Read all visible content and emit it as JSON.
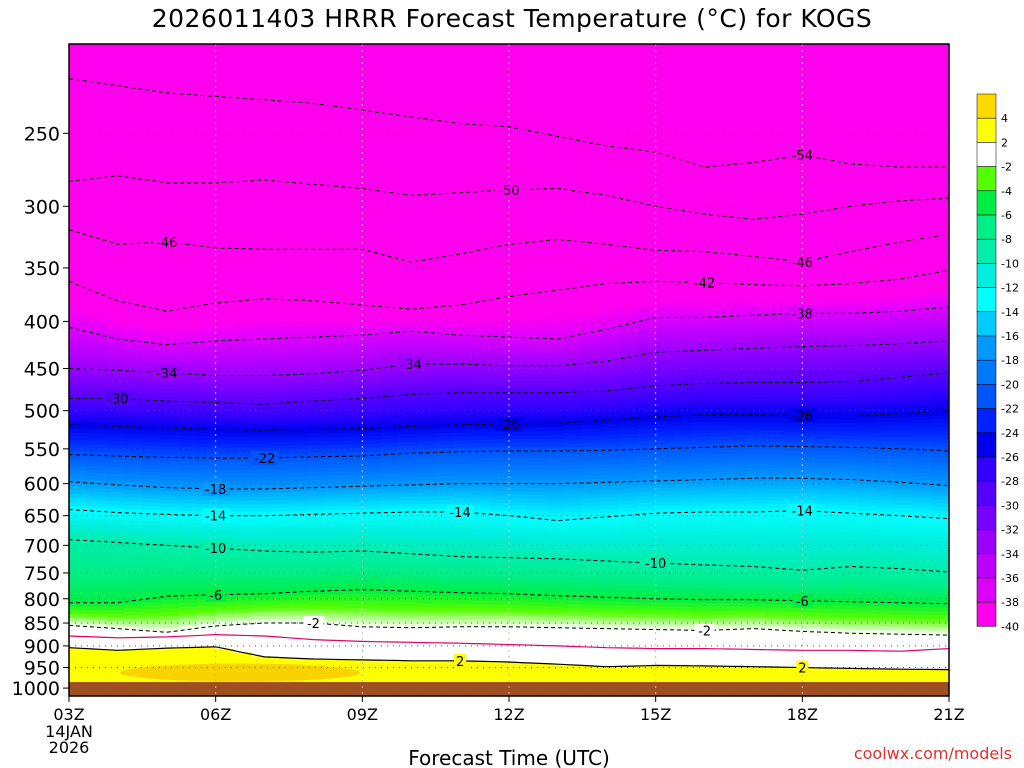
{
  "chart_data": {
    "type": "contour",
    "title": "2026011403 HRRR Forecast Temperature (°C) for KOGS",
    "xlabel": "Forecast Time (UTC)",
    "ylabel": "",
    "x_ticks": [
      {
        "hour": 0,
        "label": "03Z",
        "sub": [
          "14JAN",
          "2026"
        ]
      },
      {
        "hour": 3,
        "label": "06Z"
      },
      {
        "hour": 6,
        "label": "09Z"
      },
      {
        "hour": 9,
        "label": "12Z"
      },
      {
        "hour": 12,
        "label": "15Z"
      },
      {
        "hour": 15,
        "label": "18Z"
      },
      {
        "hour": 18,
        "label": "21Z"
      }
    ],
    "y_ticks": [
      250,
      300,
      350,
      400,
      450,
      500,
      550,
      600,
      650,
      700,
      750,
      800,
      850,
      900,
      950,
      1000
    ],
    "y_scale": "log-pressure",
    "ylim": [
      200,
      1020
    ],
    "colorbar": {
      "labels": [
        "4",
        "2",
        "-2",
        "-4",
        "-6",
        "-8",
        "-10",
        "-12",
        "-14",
        "-16",
        "-18",
        "-20",
        "-22",
        "-24",
        "-26",
        "-28",
        "-30",
        "-32",
        "-34",
        "-36",
        "-38",
        "-40"
      ],
      "colors": [
        "#ffd800",
        "#ffff00",
        "#ffffff",
        "#55ff00",
        "#00ee44",
        "#00ee88",
        "#00eeaa",
        "#00eedd",
        "#00ffff",
        "#00ccff",
        "#0099ff",
        "#0077ff",
        "#0055ff",
        "#0022ff",
        "#0000ee",
        "#3300ff",
        "#5500ff",
        "#7700ff",
        "#9900ff",
        "#bb00ff",
        "#dd00ff",
        "#ff00ee"
      ]
    },
    "contours": [
      {
        "value": -54,
        "x": [
          0,
          1,
          2,
          3,
          4,
          5,
          6,
          7,
          8,
          9,
          10,
          11,
          12,
          13,
          14,
          15,
          16,
          17,
          18
        ],
        "p": [
          218,
          222,
          226,
          228,
          230,
          232,
          236,
          240,
          244,
          246,
          252,
          258,
          262,
          272,
          269,
          264,
          270,
          272,
          272
        ]
      },
      {
        "value": -50,
        "x": [
          0,
          1,
          2,
          3,
          4,
          5,
          6,
          7,
          8,
          9,
          10,
          11,
          12,
          13,
          14,
          15,
          16,
          17,
          18
        ],
        "p": [
          282,
          278,
          283,
          283,
          281,
          284,
          287,
          292,
          290,
          288,
          287,
          292,
          300,
          306,
          310,
          306,
          300,
          296,
          294
        ]
      },
      {
        "value": -46,
        "x": [
          0,
          1,
          2,
          3,
          4,
          5,
          6,
          7,
          8,
          9,
          10,
          11,
          12,
          13,
          14,
          15,
          16,
          17,
          18
        ],
        "p": [
          318,
          330,
          328,
          333,
          334,
          334,
          334,
          345,
          338,
          330,
          326,
          330,
          335,
          336,
          340,
          345,
          336,
          328,
          322
        ]
      },
      {
        "value": -42,
        "x": [
          0,
          1,
          2,
          3,
          4,
          5,
          6,
          7,
          8,
          9,
          10,
          11,
          12,
          13,
          14,
          15,
          16,
          17,
          18
        ],
        "p": [
          362,
          380,
          390,
          382,
          378,
          380,
          384,
          388,
          384,
          376,
          370,
          364,
          362,
          363,
          365,
          366,
          364,
          360,
          352
        ]
      },
      {
        "value": -38,
        "x": [
          0,
          1,
          2,
          3,
          4,
          5,
          6,
          7,
          8,
          9,
          10,
          11,
          12,
          13,
          14,
          15,
          16,
          17,
          18
        ],
        "p": [
          406,
          418,
          424,
          420,
          418,
          416,
          414,
          410,
          414,
          416,
          418,
          408,
          396,
          396,
          394,
          392,
          392,
          390,
          386
        ]
      },
      {
        "value": -34,
        "x": [
          0,
          1,
          2,
          3,
          4,
          5,
          6,
          7,
          8,
          9,
          10,
          11,
          12,
          13,
          14,
          15,
          16,
          17,
          18
        ],
        "p": [
          450,
          452,
          455,
          458,
          458,
          456,
          452,
          445,
          445,
          447,
          447,
          442,
          432,
          430,
          428,
          426,
          425,
          423,
          420
        ]
      },
      {
        "value": -30,
        "x": [
          0,
          1,
          2,
          3,
          4,
          5,
          6,
          7,
          8,
          9,
          10,
          11,
          12,
          13,
          14,
          15,
          16,
          17,
          18
        ],
        "p": [
          485,
          485,
          488,
          490,
          492,
          488,
          485,
          480,
          478,
          478,
          478,
          476,
          470,
          467,
          466,
          466,
          465,
          460,
          455
        ]
      },
      {
        "value": -26,
        "x": [
          0,
          1,
          2,
          3,
          4,
          5,
          6,
          7,
          8,
          9,
          10,
          11,
          12,
          13,
          14,
          15,
          16,
          17,
          18
        ],
        "p": [
          518,
          520,
          522,
          524,
          525,
          524,
          523,
          520,
          518,
          517,
          516,
          512,
          508,
          505,
          505,
          506,
          506,
          504,
          500
        ]
      },
      {
        "value": -22,
        "x": [
          0,
          1,
          2,
          3,
          4,
          5,
          6,
          7,
          8,
          9,
          10,
          11,
          12,
          13,
          14,
          15,
          16,
          17,
          18
        ],
        "p": [
          558,
          560,
          562,
          563,
          563,
          561,
          560,
          556,
          554,
          553,
          553,
          552,
          550,
          548,
          546,
          547,
          548,
          550,
          553
        ]
      },
      {
        "value": -18,
        "x": [
          0,
          1,
          2,
          3,
          4,
          5,
          6,
          7,
          8,
          9,
          10,
          11,
          12,
          13,
          14,
          15,
          16,
          17,
          18
        ],
        "p": [
          597,
          602,
          606,
          608,
          608,
          606,
          604,
          602,
          600,
          600,
          600,
          598,
          596,
          594,
          592,
          592,
          594,
          598,
          603
        ]
      },
      {
        "value": -14,
        "x": [
          0,
          1,
          2,
          3,
          4,
          5,
          6,
          7,
          8,
          9,
          10,
          11,
          12,
          13,
          14,
          15,
          16,
          17,
          18
        ],
        "p": [
          640,
          645,
          648,
          650,
          650,
          648,
          646,
          644,
          644,
          650,
          658,
          652,
          646,
          644,
          644,
          642,
          646,
          650,
          655
        ]
      },
      {
        "value": -10,
        "x": [
          0,
          1,
          2,
          3,
          4,
          5,
          6,
          7,
          8,
          9,
          10,
          11,
          12,
          13,
          14,
          15,
          16,
          17,
          18
        ],
        "p": [
          690,
          695,
          700,
          705,
          710,
          712,
          710,
          715,
          720,
          722,
          724,
          728,
          732,
          735,
          738,
          745,
          738,
          742,
          748
        ]
      },
      {
        "value": -6,
        "x": [
          0,
          1,
          2,
          3,
          4,
          5,
          6,
          7,
          8,
          9,
          10,
          11,
          12,
          13,
          14,
          15,
          16,
          17,
          18
        ],
        "p": [
          808,
          808,
          795,
          792,
          790,
          785,
          782,
          785,
          788,
          790,
          794,
          797,
          800,
          802,
          802,
          804,
          806,
          808,
          810
        ]
      },
      {
        "value": -2,
        "x": [
          0,
          1,
          2,
          3,
          4,
          5,
          6,
          7,
          8,
          9,
          10,
          11,
          12,
          13,
          14,
          15,
          16,
          17,
          18
        ],
        "p": [
          855,
          862,
          870,
          856,
          850,
          850,
          858,
          860,
          858,
          858,
          860,
          862,
          864,
          866,
          862,
          868,
          872,
          874,
          876
        ]
      },
      {
        "value": 0,
        "x": [
          0,
          1,
          2,
          3,
          4,
          5,
          6,
          7,
          8,
          9,
          10,
          11,
          12,
          13,
          14,
          15,
          16,
          17,
          18
        ],
        "p": [
          878,
          882,
          880,
          875,
          878,
          886,
          890,
          892,
          894,
          897,
          900,
          904,
          906,
          906,
          908,
          910,
          910,
          912,
          906
        ]
      },
      {
        "value": 2,
        "x": [
          0,
          1,
          2,
          3,
          4,
          5,
          6,
          7,
          8,
          9,
          10,
          11,
          12,
          13,
          14,
          15,
          16,
          17,
          18
        ],
        "p": [
          904,
          910,
          905,
          902,
          925,
          930,
          932,
          934,
          934,
          937,
          942,
          948,
          945,
          946,
          948,
          950,
          952,
          954,
          955
        ]
      }
    ],
    "contour_labels": [
      {
        "value": -54,
        "x": 15
      },
      {
        "value": -50,
        "x": 9
      },
      {
        "value": -46,
        "x": 2
      },
      {
        "value": -46,
        "x": 15
      },
      {
        "value": -42,
        "x": 13
      },
      {
        "value": -38,
        "x": 15
      },
      {
        "value": -34,
        "x": 2
      },
      {
        "value": -34,
        "x": 7
      },
      {
        "value": -30,
        "x": 1
      },
      {
        "value": -26,
        "x": 9
      },
      {
        "value": -26,
        "x": 15
      },
      {
        "value": -22,
        "x": 4
      },
      {
        "value": -18,
        "x": 3
      },
      {
        "value": -14,
        "x": 3
      },
      {
        "value": -14,
        "x": 8
      },
      {
        "value": -14,
        "x": 15
      },
      {
        "value": -10,
        "x": 3
      },
      {
        "value": -10,
        "x": 12
      },
      {
        "value": -6,
        "x": 3
      },
      {
        "value": -6,
        "x": 15
      },
      {
        "value": -2,
        "x": 5
      },
      {
        "value": -2,
        "x": 13
      },
      {
        "value": 2,
        "x": 8
      },
      {
        "value": 2,
        "x": 15
      }
    ],
    "ground_color": "#a05020",
    "warm_patch_color": "#f6c800"
  },
  "footer": {
    "credit": "coolwx.com/models"
  }
}
